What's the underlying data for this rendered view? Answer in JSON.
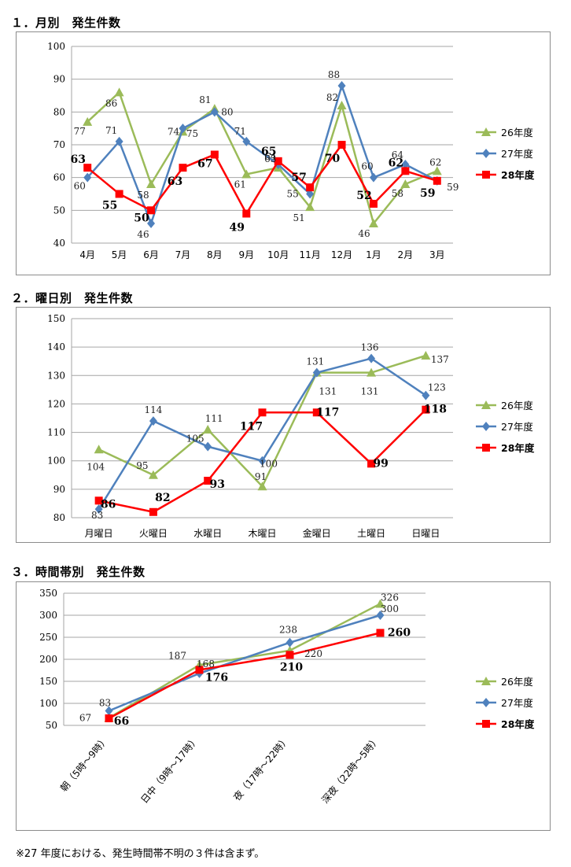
{
  "sections": [
    {
      "title": "１．月別　発生件数"
    },
    {
      "title": "２．曜日別　発生件数"
    },
    {
      "title": "３．時間帯別　発生件数"
    }
  ],
  "colors": {
    "s26": "#9bbb59",
    "s27": "#4f81bd",
    "s28": "#ff0000"
  },
  "chart_data": [
    {
      "type": "line",
      "title": "１．月別　発生件数",
      "categories": [
        "4月",
        "5月",
        "6月",
        "7月",
        "8月",
        "9月",
        "10月",
        "11月",
        "12月",
        "1月",
        "2月",
        "3月"
      ],
      "ylim": [
        40,
        100
      ],
      "yticks": [
        40,
        50,
        60,
        70,
        80,
        90,
        100
      ],
      "grid": true,
      "legend": "right",
      "series": [
        {
          "name": "26年度",
          "values": [
            77,
            86,
            58,
            74,
            81,
            61,
            63,
            51,
            82,
            46,
            58,
            62
          ]
        },
        {
          "name": "27年度",
          "values": [
            60,
            71,
            46,
            75,
            80,
            71,
            64,
            55,
            88,
            60,
            64,
            59
          ]
        },
        {
          "name": "28年度",
          "values": [
            63,
            55,
            50,
            63,
            67,
            49,
            65,
            57,
            70,
            52,
            62,
            59
          ]
        }
      ]
    },
    {
      "type": "line",
      "title": "２．曜日別　発生件数",
      "categories": [
        "月曜日",
        "火曜日",
        "水曜日",
        "木曜日",
        "金曜日",
        "土曜日",
        "日曜日"
      ],
      "ylim": [
        80,
        150
      ],
      "yticks": [
        80,
        90,
        100,
        110,
        120,
        130,
        140,
        150
      ],
      "grid": true,
      "legend": "right",
      "series": [
        {
          "name": "26年度",
          "values": [
            104,
            95,
            111,
            91,
            131,
            131,
            137
          ]
        },
        {
          "name": "27年度",
          "values": [
            83,
            114,
            105,
            100,
            131,
            136,
            123
          ]
        },
        {
          "name": "28年度",
          "values": [
            86,
            82,
            93,
            117,
            117,
            99,
            118
          ]
        }
      ]
    },
    {
      "type": "line",
      "title": "３．時間帯別　発生件数",
      "categories": [
        "朝（5時～9時）",
        "日中（9時～17時）",
        "夜（17時～22時）",
        "深夜（22時～5時）"
      ],
      "ylim": [
        50,
        350
      ],
      "yticks": [
        50,
        100,
        150,
        200,
        250,
        300,
        350
      ],
      "grid": true,
      "legend": "right",
      "series": [
        {
          "name": "26年度",
          "values": [
            67,
            187,
            220,
            326
          ]
        },
        {
          "name": "27年度",
          "values": [
            83,
            168,
            238,
            300
          ]
        },
        {
          "name": "28年度",
          "values": [
            66,
            176,
            210,
            260
          ]
        }
      ]
    }
  ],
  "note": "※27 年度における、発生時間帯不明の３件は含まず。"
}
